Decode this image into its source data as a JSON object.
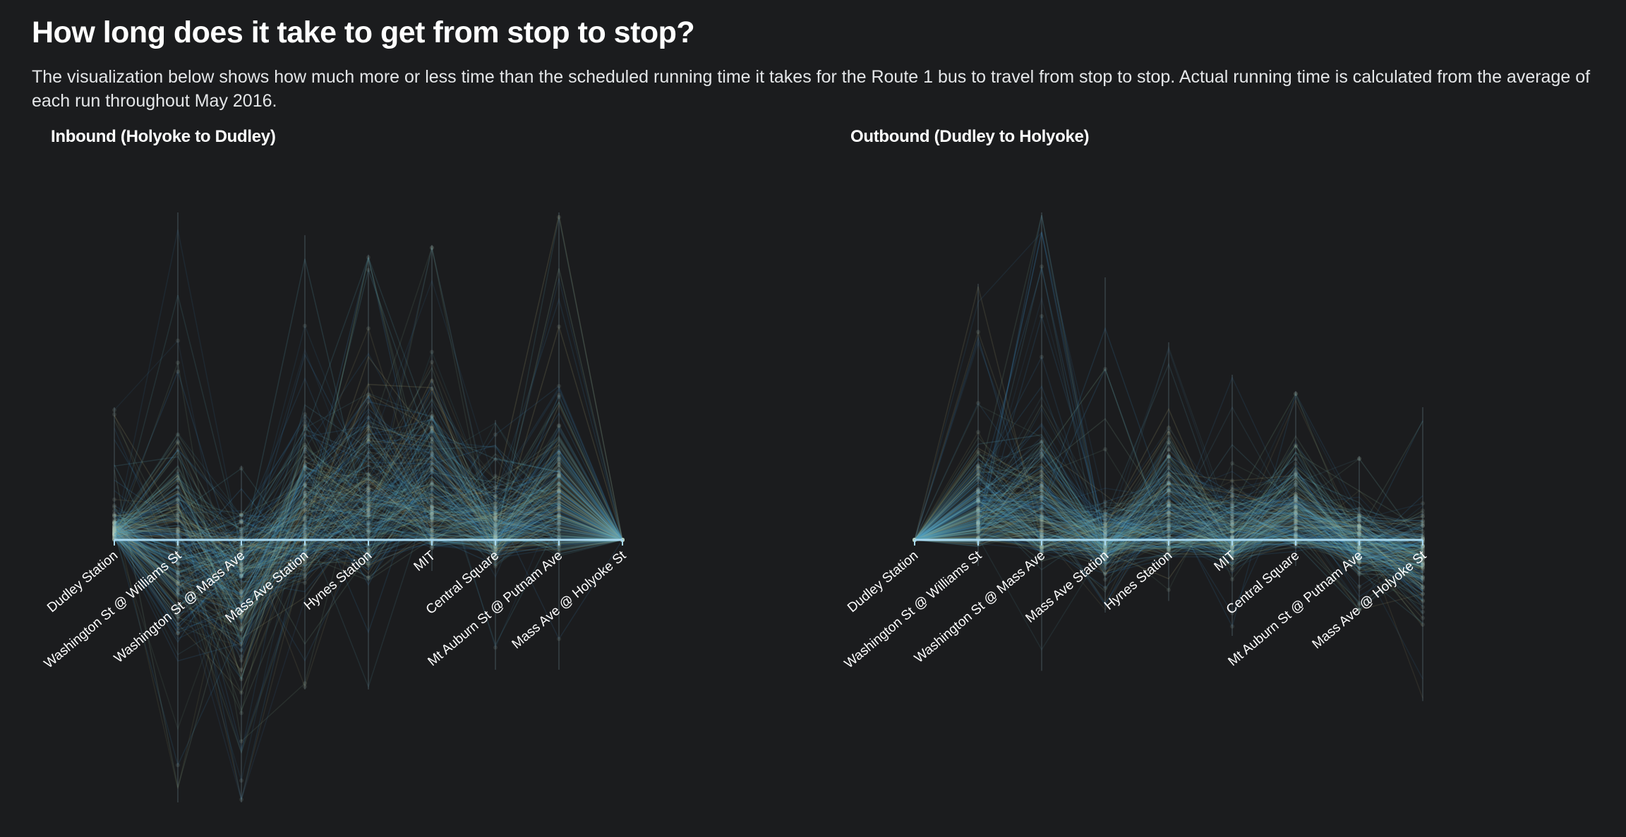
{
  "page": {
    "title": "How long does it take to get from stop to stop?",
    "description": "The visualization below shows how much more or less time than the scheduled running time it takes for the Route 1 bus to travel from stop to stop. Actual running time is calculated from the average of each run throughout May 2016."
  },
  "colors": {
    "background": "#1b1c1e",
    "baseline": "#a8d8f0",
    "line_blue": "#3c8cc4",
    "line_teal": "#5fb4c8",
    "line_olive": "#b5b07a",
    "line_green": "#8fc4a4"
  },
  "chart_data": [
    {
      "type": "line",
      "title": "Inbound (Holyoke to Dudley)",
      "categories": [
        "Dudley Station",
        "Washington St @ Williams St",
        "Washington St @ Mass Ave",
        "Mass Ave Station",
        "Hynes Station",
        "MIT",
        "Central Square",
        "Mt Auburn St @ Putnam Ave",
        "Mass Ave @ Holyoke St"
      ],
      "ylabel": "",
      "baseline_value": 0,
      "grid": false,
      "series_count_note": "many runs, overlapping translucent lines",
      "spread": {
        "max_above": [
          0.4,
          1.0,
          0.22,
          0.93,
          0.87,
          0.9,
          0.36,
          1.0,
          0.0
        ],
        "typical_above": [
          0.1,
          0.38,
          0.12,
          0.42,
          0.55,
          0.55,
          0.22,
          0.5,
          0.0
        ],
        "max_below": [
          0.0,
          0.92,
          0.92,
          0.52,
          0.52,
          0.1,
          0.45,
          0.45,
          0.0
        ],
        "typical_below": [
          0.0,
          0.45,
          0.55,
          0.2,
          0.18,
          0.04,
          0.12,
          0.08,
          0.0
        ]
      }
    },
    {
      "type": "line",
      "title": "Outbound (Dudley to Holyoke)",
      "categories": [
        "Dudley Station",
        "Washington St @ Williams St",
        "Washington St @ Mass Ave",
        "Mass Ave Station",
        "Hynes Station",
        "MIT",
        "Central Square",
        "Mt Auburn St @ Putnam Ave",
        "Mass Ave @ Holyoke St"
      ],
      "ylabel": "",
      "baseline_value": 0,
      "grid": false,
      "series_count_note": "many runs, overlapping translucent lines",
      "spread": {
        "max_above": [
          0.0,
          0.78,
          1.0,
          0.8,
          0.6,
          0.5,
          0.45,
          0.25,
          0.4
        ],
        "typical_above": [
          0.0,
          0.32,
          0.42,
          0.15,
          0.38,
          0.2,
          0.32,
          0.12,
          0.1
        ],
        "max_below": [
          0.0,
          0.1,
          0.55,
          0.3,
          0.25,
          0.4,
          0.1,
          0.3,
          0.68
        ],
        "typical_below": [
          0.0,
          0.04,
          0.1,
          0.18,
          0.1,
          0.15,
          0.05,
          0.18,
          0.38
        ]
      }
    }
  ]
}
